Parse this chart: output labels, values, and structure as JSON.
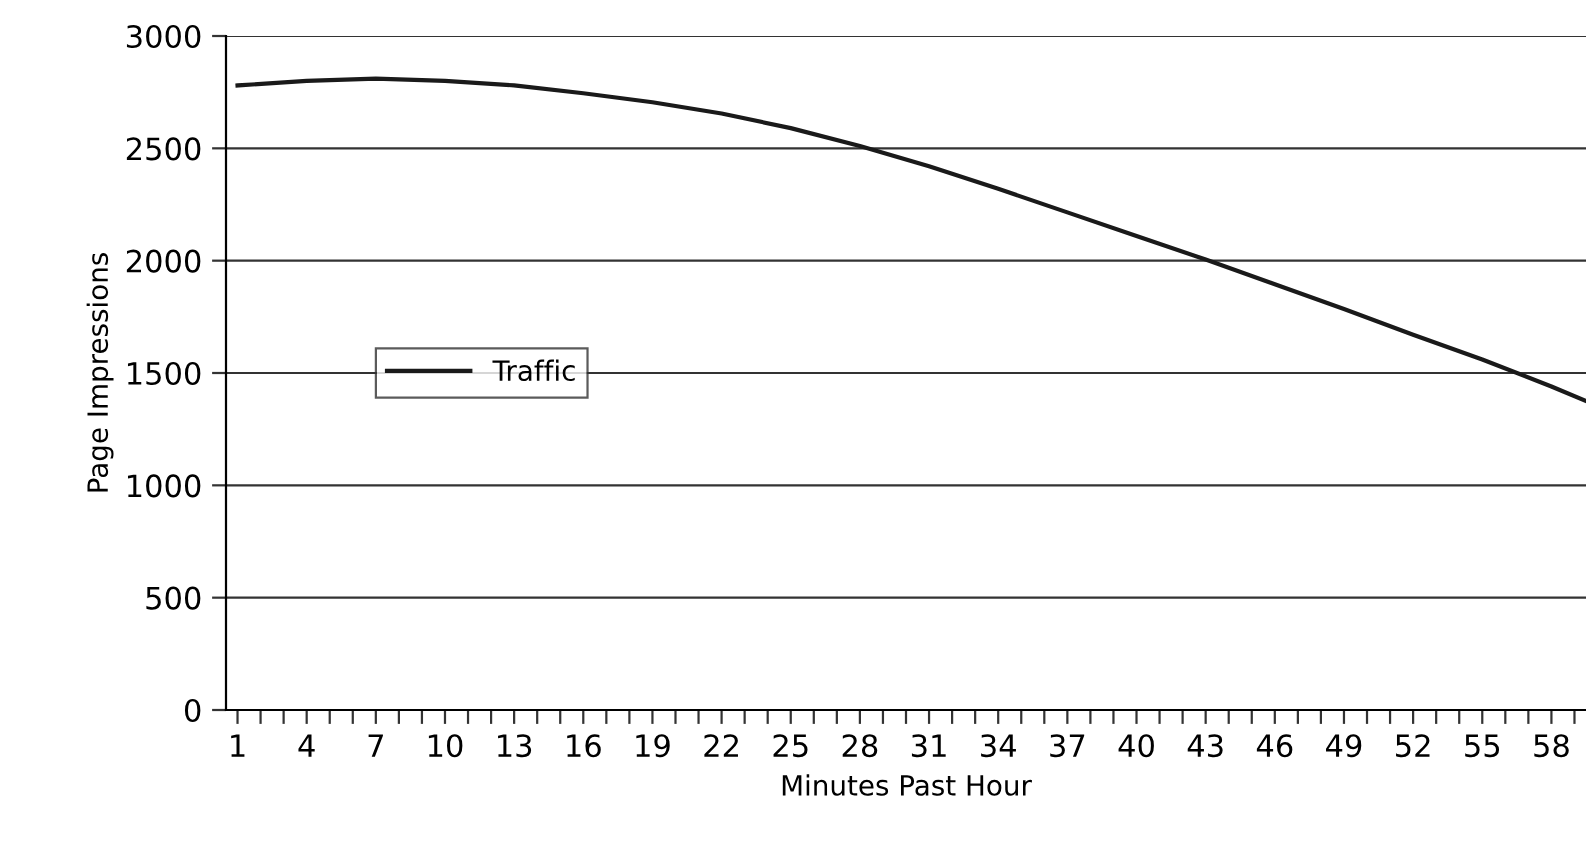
{
  "chart_data": {
    "type": "line",
    "xlabel": "Minutes Past Hour",
    "ylabel": "Page Impressions",
    "x": [
      1,
      4,
      7,
      10,
      13,
      16,
      19,
      22,
      25,
      28,
      31,
      34,
      37,
      40,
      43,
      46,
      49,
      52,
      55,
      58,
      59.5
    ],
    "series": [
      {
        "name": "Traffic",
        "color": "#1a1a1a",
        "values": [
          2780,
          2800,
          2810,
          2800,
          2780,
          2745,
          2705,
          2655,
          2590,
          2510,
          2420,
          2320,
          2215,
          2110,
          2005,
          1895,
          1785,
          1670,
          1560,
          1440,
          1375
        ]
      }
    ],
    "xlim": [
      0.5,
      59.5
    ],
    "ylim": [
      0,
      3000
    ],
    "yticks": [
      0,
      500,
      1000,
      1500,
      2000,
      2500,
      3000
    ],
    "xticks": [
      1,
      {
        "value": 2,
        "label": null
      },
      {
        "value": 3,
        "label": null
      },
      4,
      {
        "value": 5,
        "label": null
      },
      {
        "value": 6,
        "label": null
      },
      7,
      {
        "value": 8,
        "label": null
      },
      {
        "value": 9,
        "label": null
      },
      10,
      {
        "value": 11,
        "label": null
      },
      {
        "value": 12,
        "label": null
      },
      13,
      {
        "value": 14,
        "label": null
      },
      {
        "value": 15,
        "label": null
      },
      16,
      {
        "value": 17,
        "label": null
      },
      {
        "value": 18,
        "label": null
      },
      19,
      {
        "value": 20,
        "label": null
      },
      {
        "value": 21,
        "label": null
      },
      22,
      {
        "value": 23,
        "label": null
      },
      {
        "value": 24,
        "label": null
      },
      25,
      {
        "value": 26,
        "label": null
      },
      {
        "value": 27,
        "label": null
      },
      28,
      {
        "value": 29,
        "label": null
      },
      {
        "value": 30,
        "label": null
      },
      31,
      {
        "value": 32,
        "label": null
      },
      {
        "value": 33,
        "label": null
      },
      34,
      {
        "value": 35,
        "label": null
      },
      {
        "value": 36,
        "label": null
      },
      37,
      {
        "value": 38,
        "label": null
      },
      {
        "value": 39,
        "label": null
      },
      40,
      {
        "value": 41,
        "label": null
      },
      {
        "value": 42,
        "label": null
      },
      43,
      {
        "value": 44,
        "label": null
      },
      {
        "value": 45,
        "label": null
      },
      46,
      {
        "value": 47,
        "label": null
      },
      {
        "value": 48,
        "label": null
      },
      49,
      {
        "value": 50,
        "label": null
      },
      {
        "value": 51,
        "label": null
      },
      52,
      {
        "value": 53,
        "label": null
      },
      {
        "value": 54,
        "label": null
      },
      55,
      {
        "value": 56,
        "label": null
      },
      {
        "value": 57,
        "label": null
      },
      58,
      {
        "value": 59,
        "label": null
      }
    ],
    "grid": "y",
    "legend": "center left",
    "marker": "none",
    "line_style": "solid"
  }
}
